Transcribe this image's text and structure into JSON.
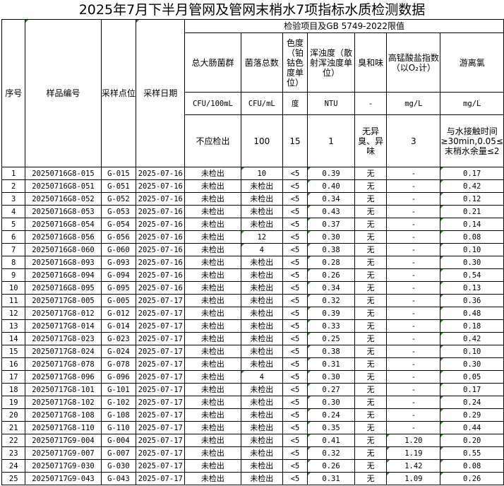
{
  "title": "2025年7月下半月管网及管网末梢水7项指标水质检测数据",
  "headers": {
    "seq": "序号",
    "sample_id": "样品编号",
    "site": "采样点位",
    "date": "采样日期",
    "group": "检验项目及GB 5749-2022限值",
    "items": [
      {
        "name": "总大肠菌群",
        "unit": "CFU/100mL",
        "limit": "不应检出"
      },
      {
        "name": "菌落总数",
        "unit": "CFU/mL",
        "limit": "100"
      },
      {
        "name": "色度（铂钴色度单位）",
        "unit": "度",
        "limit": "15"
      },
      {
        "name": "浑浊度（散射浑浊度单位）",
        "unit": "NTU",
        "limit": "1"
      },
      {
        "name": "臭和味",
        "unit": "-",
        "limit": "无异臭、异味"
      },
      {
        "name": "高锰酸盐指数（以O₂计）",
        "unit": "mg/L",
        "limit": "3"
      },
      {
        "name": "游离氯",
        "unit": "mg/L",
        "limit": "与水接触时间≥30min,0.05≤末梢水余量≤2"
      }
    ]
  },
  "rows": [
    [
      "1",
      "20250716G8-015",
      "G-015",
      "2025-07-16",
      "未检出",
      "10",
      "<5",
      "0.39",
      "无",
      "-",
      "0.17"
    ],
    [
      "2",
      "20250716G8-051",
      "G-051",
      "2025-07-16",
      "未检出",
      "未检出",
      "<5",
      "0.40",
      "无",
      "-",
      "0.42"
    ],
    [
      "3",
      "20250716G8-052",
      "G-052",
      "2025-07-16",
      "未检出",
      "未检出",
      "<5",
      "0.34",
      "无",
      "-",
      "0.12"
    ],
    [
      "4",
      "20250716G8-053",
      "G-053",
      "2025-07-16",
      "未检出",
      "未检出",
      "<5",
      "0.43",
      "无",
      "-",
      "0.21"
    ],
    [
      "5",
      "20250716G8-054",
      "G-054",
      "2025-07-16",
      "未检出",
      "未检出",
      "<5",
      "0.37",
      "无",
      "-",
      "0.14"
    ],
    [
      "6",
      "20250716G8-056",
      "G-056",
      "2025-07-16",
      "未检出",
      "12",
      "<5",
      "0.30",
      "无",
      "-",
      "0.08"
    ],
    [
      "7",
      "20250716G8-060",
      "G-060",
      "2025-07-16",
      "未检出",
      "4",
      "<5",
      "0.38",
      "无",
      "-",
      "0.10"
    ],
    [
      "8",
      "20250716G8-093",
      "G-093",
      "2025-07-16",
      "未检出",
      "未检出",
      "<5",
      "0.28",
      "无",
      "-",
      "0.30"
    ],
    [
      "9",
      "20250716G8-094",
      "G-094",
      "2025-07-16",
      "未检出",
      "未检出",
      "<5",
      "0.26",
      "无",
      "-",
      "0.54"
    ],
    [
      "10",
      "20250716G8-095",
      "G-095",
      "2025-07-16",
      "未检出",
      "未检出",
      "<5",
      "0.34",
      "无",
      "-",
      "0.13"
    ],
    [
      "11",
      "20250717G8-005",
      "G-005",
      "2025-07-17",
      "未检出",
      "未检出",
      "<5",
      "0.32",
      "无",
      "-",
      "0.36"
    ],
    [
      "12",
      "20250717G8-012",
      "G-012",
      "2025-07-17",
      "未检出",
      "未检出",
      "<5",
      "0.39",
      "无",
      "-",
      "0.48"
    ],
    [
      "13",
      "20250717G8-014",
      "G-014",
      "2025-07-17",
      "未检出",
      "未检出",
      "<5",
      "0.33",
      "无",
      "-",
      "0.18"
    ],
    [
      "14",
      "20250717G8-023",
      "G-023",
      "2025-07-17",
      "未检出",
      "未检出",
      "<5",
      "0.25",
      "无",
      "-",
      "0.42"
    ],
    [
      "15",
      "20250717G8-024",
      "G-024",
      "2025-07-17",
      "未检出",
      "未检出",
      "<5",
      "0.38",
      "无",
      "-",
      "0.10"
    ],
    [
      "16",
      "20250717G8-078",
      "G-078",
      "2025-07-17",
      "未检出",
      "未检出",
      "<5",
      "0.31",
      "无",
      "-",
      "0.30"
    ],
    [
      "17",
      "20250717G8-096",
      "G-096",
      "2025-07-17",
      "未检出",
      "4",
      "<5",
      "0.30",
      "无",
      "-",
      "0.05"
    ],
    [
      "18",
      "20250717G8-101",
      "G-101",
      "2025-07-17",
      "未检出",
      "未检出",
      "<5",
      "0.27",
      "无",
      "-",
      "0.17"
    ],
    [
      "19",
      "20250717G8-102",
      "G-102",
      "2025-07-17",
      "未检出",
      "未检出",
      "<5",
      "0.30",
      "无",
      "-",
      "0.24"
    ],
    [
      "20",
      "20250717G8-108",
      "G-108",
      "2025-07-17",
      "未检出",
      "未检出",
      "<5",
      "0.24",
      "无",
      "-",
      "0.29"
    ],
    [
      "21",
      "20250717G8-110",
      "G-110",
      "2025-07-17",
      "未检出",
      "未检出",
      "<5",
      "0.35",
      "无",
      "-",
      "0.44"
    ],
    [
      "22",
      "20250717G9-004",
      "G-004",
      "2025-07-17",
      "未检出",
      "未检出",
      "<5",
      "0.41",
      "无",
      "1.20",
      "0.20"
    ],
    [
      "23",
      "20250717G9-007",
      "G-007",
      "2025-07-17",
      "未检出",
      "未检出",
      "<5",
      "0.32",
      "无",
      "1.19",
      "0.55"
    ],
    [
      "24",
      "20250717G9-030",
      "G-030",
      "2025-07-17",
      "未检出",
      "未检出",
      "<5",
      "0.26",
      "无",
      "1.42",
      "0.08"
    ],
    [
      "25",
      "20250717G9-043",
      "G-043",
      "2025-07-17",
      "未检出",
      "未检出",
      "<5",
      "0.31",
      "无",
      "1.09",
      "0.26"
    ]
  ]
}
